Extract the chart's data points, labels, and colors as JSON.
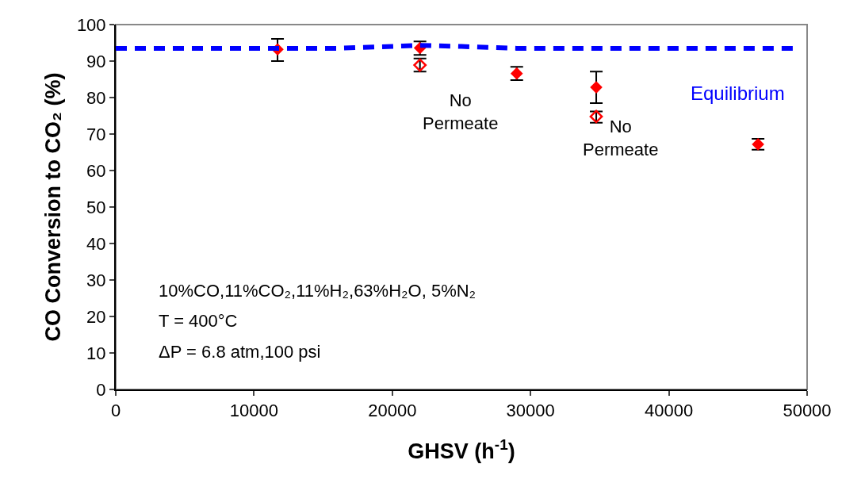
{
  "chart_data": {
    "type": "scatter",
    "xlabel": "GHSV (h$^{-1}$)",
    "ylabel": "CO Conversion to CO₂ (%)",
    "xlim": [
      0,
      50000
    ],
    "xticks": [
      0,
      10000,
      20000,
      30000,
      40000,
      50000
    ],
    "ylim": [
      0,
      100
    ],
    "yticks": [
      0,
      10,
      20,
      30,
      40,
      50,
      60,
      70,
      80,
      90,
      100
    ],
    "grid": false,
    "legend": false,
    "marker": "diamond",
    "series": [
      {
        "type": "line",
        "name": "Equilibrium",
        "color": "#0000ff",
        "marker": "none",
        "line_style": "dashed",
        "x": [
          0,
          16000,
          22000,
          25000,
          29000,
          49100
        ],
        "values": [
          93.5,
          93.5,
          94.3,
          94.0,
          93.5,
          93.5
        ]
      },
      {
        "color": "#ff0000",
        "x": [
          11700,
          22000,
          29000,
          34750,
          46450
        ],
        "values": [
          93.2,
          93.6,
          86.6,
          82.8,
          67.2
        ],
        "errors": [
          [
            90.0,
            96.1
          ],
          [
            91.7,
            95.4
          ],
          [
            84.8,
            88.4
          ],
          [
            78.5,
            87.1
          ],
          [
            65.7,
            68.7
          ]
        ]
      },
      {
        "color": "#ff0000",
        "marker": "diamond-open",
        "x": [
          22000,
          34750
        ],
        "values": [
          88.9,
          74.8
        ],
        "errors": [
          [
            87.1,
            90.7
          ],
          [
            73.1,
            76.2
          ]
        ]
      }
    ],
    "annotations": [
      "No\nPermeate",
      "No\nPermeate",
      "10%CO,11%CO₂,11%H₂,63%H₂O, 5%N₂\nT = 400°C\nΔP = 6.8 atm,100 psi"
    ]
  }
}
